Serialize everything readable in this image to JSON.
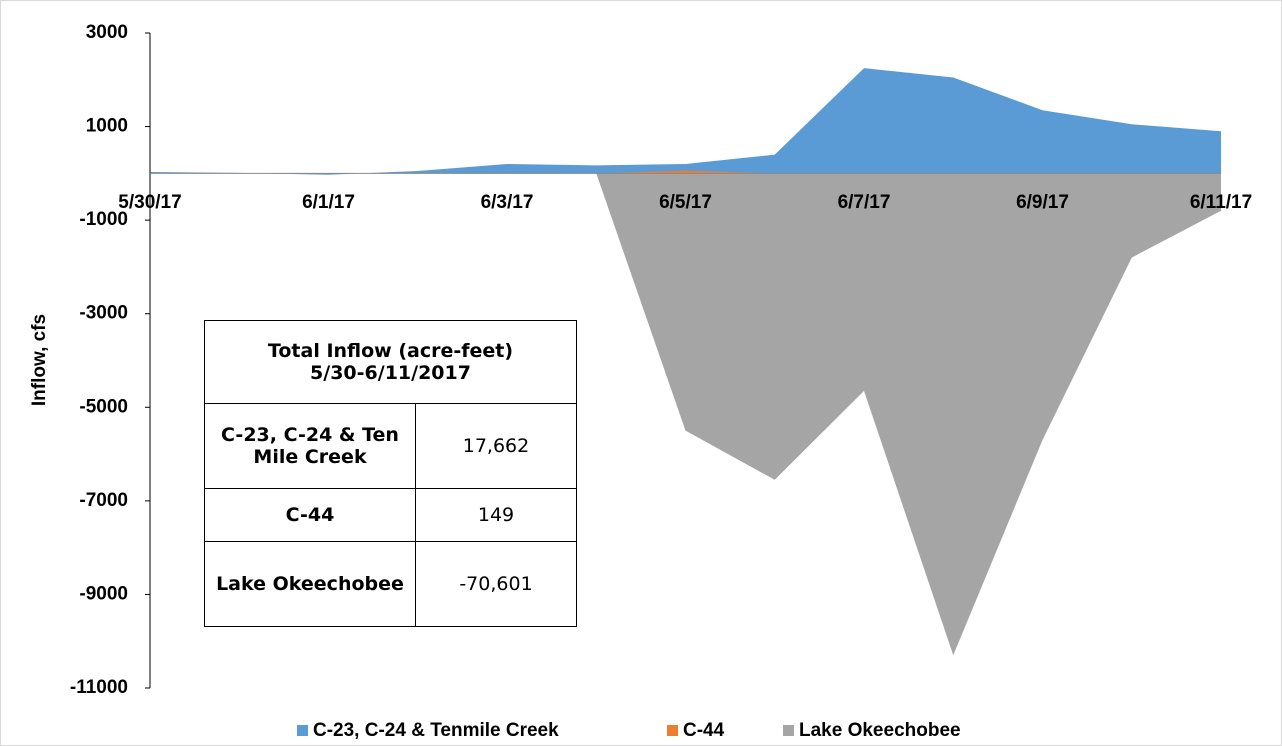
{
  "chart_data": {
    "type": "area",
    "y_label": "Inflow, cfs",
    "categories": [
      "5/30/17",
      null,
      "6/1/17",
      null,
      "6/3/17",
      null,
      "6/5/17",
      null,
      "6/7/17",
      null,
      "6/9/17",
      null,
      "6/11/17"
    ],
    "series": [
      {
        "name": "C-23, C-24 & Tenmile Creek",
        "color": "#5b9bd5",
        "values": [
          30,
          10,
          -30,
          50,
          200,
          170,
          200,
          400,
          2250,
          2050,
          1350,
          1050,
          900
        ]
      },
      {
        "name": "C-44",
        "color": "#ed7d31",
        "values": [
          0,
          0,
          0,
          0,
          0,
          0,
          60,
          0,
          0,
          0,
          0,
          0,
          0
        ]
      },
      {
        "name": "Lake Okeechobee",
        "color": "#a5a5a5",
        "values": [
          0,
          0,
          0,
          0,
          0,
          0,
          -5500,
          -6550,
          -4650,
          -10300,
          -5700,
          -1800,
          -800
        ]
      }
    ],
    "draw_order": [
      2,
      0,
      1
    ],
    "ylim": [
      -11000,
      3000
    ],
    "yticks": [
      3000,
      1000,
      -1000,
      -3000,
      -5000,
      -7000,
      -9000,
      -11000
    ]
  },
  "table": {
    "title": [
      "Total Inflow (acre-feet)",
      "5/30-6/11/2017"
    ],
    "rows": [
      [
        "C-23, C-24 & Ten Mile Creek",
        "17,662"
      ],
      [
        "C-44",
        "149"
      ],
      [
        "Lake Okeechobee",
        "-70,601"
      ]
    ]
  }
}
